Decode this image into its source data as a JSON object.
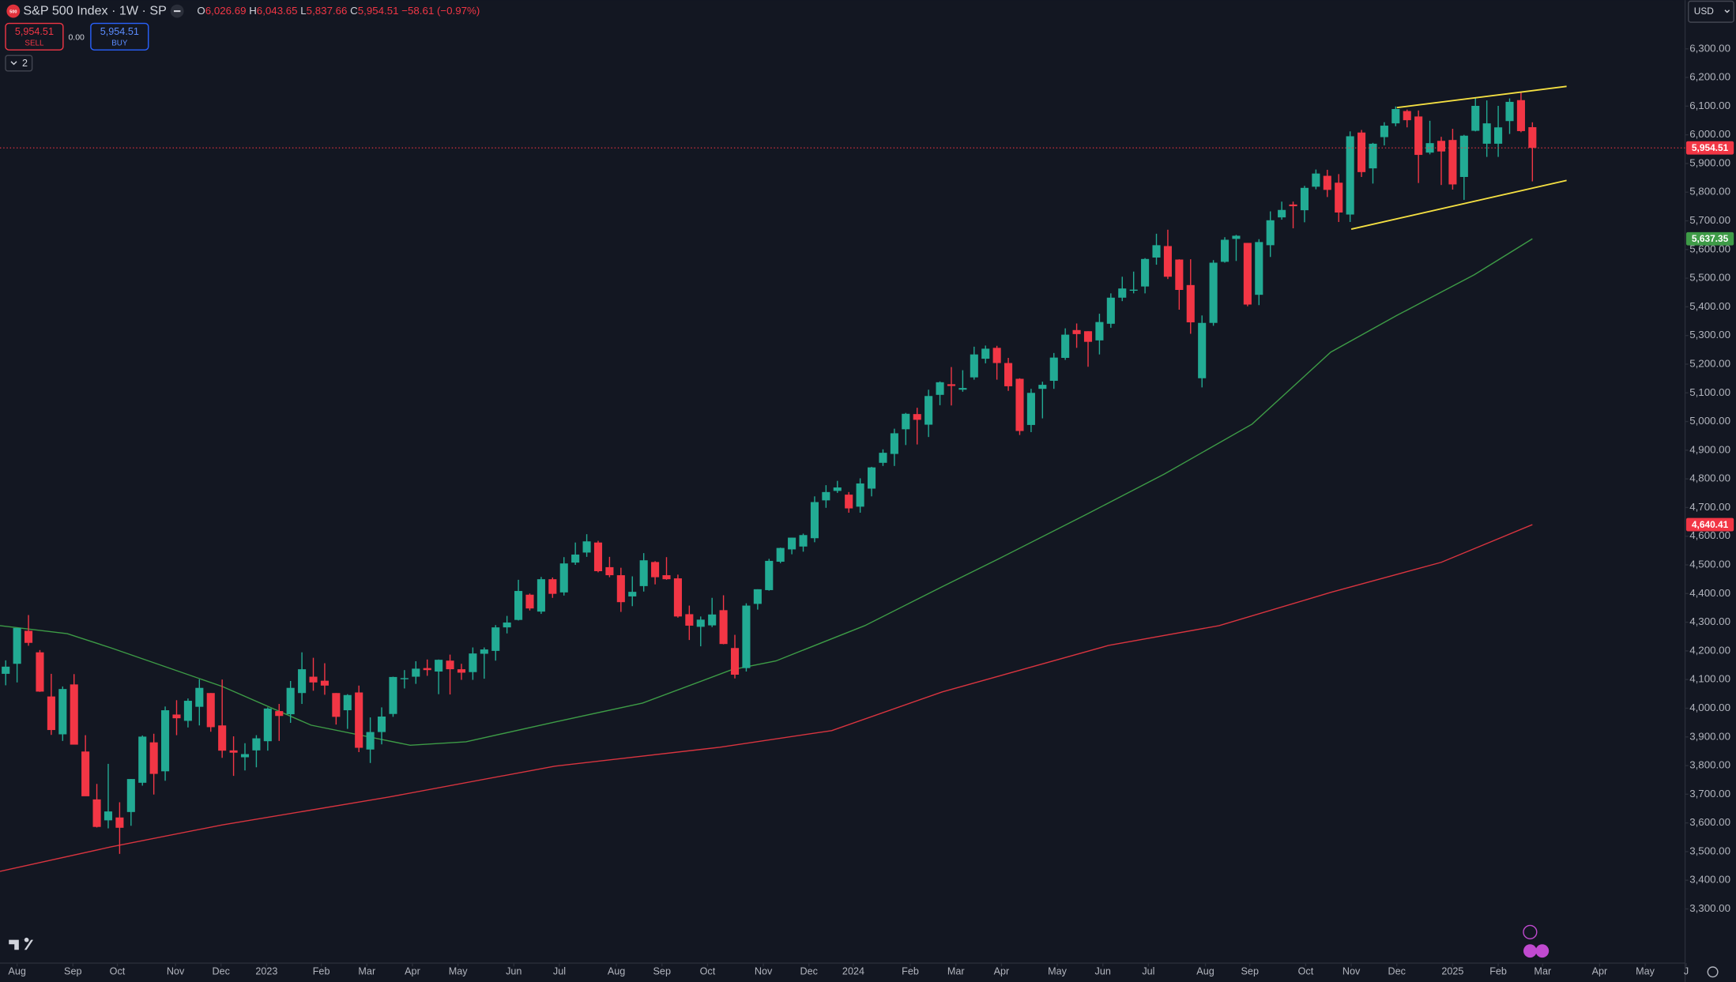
{
  "header": {
    "logo": "500",
    "symbol": "S&P 500 Index · 1W · SP",
    "ohlc": [
      {
        "key": "O",
        "value": "6,026.69"
      },
      {
        "key": "H",
        "value": "6,043.65"
      },
      {
        "key": "L",
        "value": "5,837.66"
      },
      {
        "key": "C",
        "value": "5,954.51"
      }
    ],
    "change": "−58.61 (−0.97%)",
    "sell_price": "5,954.51",
    "sell": "SELL",
    "spread": "0.00",
    "buy_price": "5,954.51",
    "buy": "BUY",
    "indicators": "2",
    "currency": "USD"
  },
  "chart_data": {
    "type": "candlestick",
    "up_color": "#22ab94",
    "down_color": "#f23645",
    "grid": false,
    "xlim": [
      -0.5,
      147.4
    ],
    "ylim": [
      3111,
      6470
    ],
    "xticks": [
      {
        "value": 1.0,
        "label": "Aug"
      },
      {
        "value": 5.9,
        "label": "Sep"
      },
      {
        "value": 9.8,
        "label": "Oct"
      },
      {
        "value": 14.9,
        "label": "Nov"
      },
      {
        "value": 18.9,
        "label": "Dec"
      },
      {
        "value": 22.9,
        "label": "2023"
      },
      {
        "value": 27.7,
        "label": "Feb"
      },
      {
        "value": 31.7,
        "label": "Mar"
      },
      {
        "value": 35.7,
        "label": "Apr"
      },
      {
        "value": 39.7,
        "label": "May"
      },
      {
        "value": 44.6,
        "label": "Jun"
      },
      {
        "value": 48.6,
        "label": "Jul"
      },
      {
        "value": 53.6,
        "label": "Aug"
      },
      {
        "value": 57.6,
        "label": "Sep"
      },
      {
        "value": 61.6,
        "label": "Oct"
      },
      {
        "value": 66.5,
        "label": "Nov"
      },
      {
        "value": 70.5,
        "label": "Dec"
      },
      {
        "value": 74.4,
        "label": "2024"
      },
      {
        "value": 79.4,
        "label": "Feb"
      },
      {
        "value": 83.4,
        "label": "Mar"
      },
      {
        "value": 87.4,
        "label": "Apr"
      },
      {
        "value": 92.3,
        "label": "May"
      },
      {
        "value": 96.3,
        "label": "Jun"
      },
      {
        "value": 100.3,
        "label": "Jul"
      },
      {
        "value": 105.3,
        "label": "Aug"
      },
      {
        "value": 109.2,
        "label": "Sep"
      },
      {
        "value": 114.1,
        "label": "Oct"
      },
      {
        "value": 118.1,
        "label": "Nov"
      },
      {
        "value": 122.1,
        "label": "Dec"
      },
      {
        "value": 127.0,
        "label": "2025"
      },
      {
        "value": 131.0,
        "label": "Feb"
      },
      {
        "value": 134.9,
        "label": "Mar"
      },
      {
        "value": 139.9,
        "label": "Apr"
      },
      {
        "value": 143.9,
        "label": "May"
      },
      {
        "value": 147.5,
        "label": "J"
      }
    ],
    "yticks": [
      {
        "value": 3300,
        "label": "3,300.00"
      },
      {
        "value": 3400,
        "label": "3,400.00"
      },
      {
        "value": 3500,
        "label": "3,500.00"
      },
      {
        "value": 3600,
        "label": "3,600.00"
      },
      {
        "value": 3700,
        "label": "3,700.00"
      },
      {
        "value": 3800,
        "label": "3,800.00"
      },
      {
        "value": 3900,
        "label": "3,900.00"
      },
      {
        "value": 4000,
        "label": "4,000.00"
      },
      {
        "value": 4100,
        "label": "4,100.00"
      },
      {
        "value": 4200,
        "label": "4,200.00"
      },
      {
        "value": 4300,
        "label": "4,300.00"
      },
      {
        "value": 4400,
        "label": "4,400.00"
      },
      {
        "value": 4500,
        "label": "4,500.00"
      },
      {
        "value": 4600,
        "label": "4,600.00"
      },
      {
        "value": 4700,
        "label": "4,700.00"
      },
      {
        "value": 4800,
        "label": "4,800.00"
      },
      {
        "value": 4900,
        "label": "4,900.00"
      },
      {
        "value": 5000,
        "label": "5,000.00"
      },
      {
        "value": 5100,
        "label": "5,100.00"
      },
      {
        "value": 5200,
        "label": "5,200.00"
      },
      {
        "value": 5300,
        "label": "5,300.00"
      },
      {
        "value": 5400,
        "label": "5,400.00"
      },
      {
        "value": 5500,
        "label": "5,500.00"
      },
      {
        "value": 5600,
        "label": "5,600.00"
      },
      {
        "value": 5700,
        "label": "5,700.00"
      },
      {
        "value": 5800,
        "label": "5,800.00"
      },
      {
        "value": 5900,
        "label": "5,900.00"
      },
      {
        "value": 6000,
        "label": "6,000.00"
      },
      {
        "value": 6100,
        "label": "6,100.00"
      },
      {
        "value": 6200,
        "label": "6,200.00"
      },
      {
        "value": 6300,
        "label": "6,300.00"
      }
    ],
    "open": [
      4120,
      4155,
      4270,
      4195,
      4041,
      3909,
      4083,
      3849,
      3682,
      3609,
      3619,
      3638,
      3740,
      3881,
      3780,
      3978,
      3956,
      4005,
      4053,
      3940,
      3853,
      3829,
      3853,
      3885,
      3990,
      3979,
      4053,
      4110,
      4096,
      4053,
      3993,
      4055,
      3856,
      3917,
      3980,
      4102,
      4110,
      4140,
      4128,
      4166,
      4136,
      4126,
      4190,
      4200,
      4282,
      4308,
      4396,
      4337,
      4450,
      4404,
      4508,
      4543,
      4578,
      4492,
      4464,
      4390,
      4426,
      4510,
      4464,
      4453,
      4328,
      4284,
      4289,
      4342,
      4210,
      4140,
      4364,
      4412,
      4511,
      4554,
      4564,
      4593,
      4725,
      4758,
      4745,
      4703,
      4766,
      4856,
      4887,
      4973,
      5026,
      4989,
      5093,
      5130,
      5111,
      5154,
      5219,
      5257,
      5204,
      5149,
      4988,
      5114,
      5142,
      5222,
      5319,
      5315,
      5283,
      5341,
      5432,
      5459,
      5471,
      5572,
      5612,
      5565,
      5476,
      5151,
      5344,
      5557,
      5637,
      5623,
      5442,
      5615,
      5712,
      5757,
      5737,
      5819,
      5857,
      5833,
      5722,
      6008,
      5883,
      5992,
      6040,
      6083,
      6064,
      5938,
      5979,
      5982,
      5853,
      6014,
      5969,
      5969,
      6048,
      6121,
      6026.69
    ],
    "high": [
      4167,
      4280,
      4325,
      4203,
      4120,
      4076,
      4119,
      3906,
      3736,
      3806,
      3672,
      3753,
      3905,
      3911,
      4006,
      4028,
      4034,
      4101,
      4053,
      4100,
      3902,
      3878,
      3906,
      4003,
      4015,
      4095,
      4195,
      4176,
      4157,
      4053,
      4049,
      4079,
      3968,
      4003,
      4110,
      4133,
      4164,
      4170,
      4170,
      4187,
      4155,
      4212,
      4212,
      4290,
      4322,
      4448,
      4400,
      4458,
      4456,
      4527,
      4578,
      4607,
      4584,
      4528,
      4490,
      4460,
      4541,
      4513,
      4527,
      4466,
      4358,
      4320,
      4385,
      4394,
      4256,
      4366,
      4415,
      4521,
      4560,
      4595,
      4609,
      4739,
      4778,
      4793,
      4754,
      4802,
      4842,
      4903,
      4975,
      5030,
      5048,
      5111,
      5140,
      5190,
      5179,
      5261,
      5265,
      5264,
      5222,
      5151,
      5114,
      5139,
      5239,
      5325,
      5342,
      5315,
      5376,
      5447,
      5505,
      5523,
      5570,
      5655,
      5669,
      5566,
      5566,
      5370,
      5563,
      5643,
      5651,
      5623,
      5636,
      5733,
      5767,
      5767,
      5822,
      5879,
      5878,
      5863,
      6012,
      6017,
      5972,
      6044,
      6099,
      6088,
      6085,
      6049,
      5993,
      6021,
      6000,
      6128,
      6120,
      6101,
      6127,
      6147,
      6043.65
    ],
    "low": [
      4080,
      4090,
      4218,
      4057,
      3907,
      3886,
      3886,
      3694,
      3584,
      3581,
      3492,
      3590,
      3730,
      3699,
      3747,
      3906,
      3933,
      3940,
      3918,
      3827,
      3764,
      3783,
      3794,
      3852,
      3886,
      3949,
      4015,
      4061,
      4047,
      3943,
      3928,
      3847,
      3809,
      3874,
      3970,
      4069,
      4085,
      4113,
      4049,
      4048,
      4099,
      4099,
      4103,
      4166,
      4261,
      4306,
      4341,
      4329,
      4385,
      4393,
      4500,
      4528,
      4474,
      4457,
      4336,
      4356,
      4407,
      4432,
      4448,
      4316,
      4238,
      4216,
      4283,
      4223,
      4104,
      4128,
      4344,
      4410,
      4506,
      4537,
      4546,
      4579,
      4699,
      4751,
      4682,
      4682,
      4739,
      4845,
      4845,
      4918,
      4920,
      4946,
      5057,
      5056,
      5104,
      5146,
      5203,
      5146,
      5107,
      4953,
      4963,
      5011,
      5114,
      5215,
      5257,
      5191,
      5234,
      5327,
      5420,
      5447,
      5447,
      5547,
      5497,
      5390,
      5306,
      5119,
      5334,
      5554,
      5560,
      5402,
      5406,
      5574,
      5704,
      5674,
      5695,
      5810,
      5783,
      5696,
      5696,
      5853,
      5830,
      5963,
      6030,
      6026,
      5832,
      5932,
      5825,
      5809,
      5773,
      6012,
      5923,
      5923,
      6003,
      6009,
      5837.66
    ],
    "close": [
      4145,
      4280,
      4228,
      4058,
      3924,
      4067,
      3873,
      3693,
      3586,
      3640,
      3583,
      3753,
      3901,
      3771,
      3993,
      3965,
      4026,
      4071,
      3934,
      3852,
      3845,
      3840,
      3895,
      3999,
      3973,
      4071,
      4136,
      4090,
      4079,
      3970,
      4046,
      3862,
      3917,
      3971,
      4109,
      4105,
      4138,
      4133,
      4169,
      4136,
      4124,
      4191,
      4205,
      4282,
      4299,
      4409,
      4348,
      4450,
      4399,
      4505,
      4536,
      4582,
      4478,
      4464,
      4370,
      4406,
      4516,
      4457,
      4450,
      4320,
      4288,
      4309,
      4327,
      4224,
      4117,
      4358,
      4415,
      4514,
      4559,
      4595,
      4604,
      4719,
      4754,
      4770,
      4697,
      4784,
      4840,
      4891,
      4959,
      5027,
      5006,
      5089,
      5137,
      5124,
      5117,
      5234,
      5254,
      5204,
      5123,
      4967,
      5100,
      5128,
      5223,
      5303,
      5305,
      5278,
      5347,
      5432,
      5464,
      5460,
      5567,
      5615,
      5505,
      5459,
      5346,
      5344,
      5554,
      5634,
      5648,
      5408,
      5626,
      5702,
      5738,
      5751,
      5815,
      5865,
      5808,
      5729,
      5995,
      5870,
      5969,
      6032,
      6090,
      6051,
      5930,
      5971,
      5942,
      5827,
      5997,
      6101,
      6040,
      6026,
      6115,
      6013,
      5954.51
    ],
    "lines": [
      {
        "color": "#3d9b46",
        "x": [
          -0.5,
          5.4,
          9.2,
          19.0,
          26.8,
          35.5,
          40.4,
          48.2,
          55.9,
          63.7,
          67.6,
          75.4,
          82.2,
          87.1,
          94.8,
          101.7,
          109.4,
          116.3,
          122.1,
          128.9,
          134.0
        ],
        "values": [
          4288,
          4260,
          4211,
          4076,
          3941,
          3871,
          3883,
          3952,
          4018,
          4134,
          4165,
          4288,
          4424,
          4520,
          4675,
          4817,
          4991,
          5242,
          5370,
          5512,
          5637.35
        ]
      },
      {
        "color": "#d8343f",
        "x": [
          -0.5,
          9.2,
          19.0,
          33.6,
          48.2,
          62.7,
          72.5,
          82.2,
          96.8,
          106.5,
          116.3,
          126.0,
          134.0
        ],
        "values": [
          3431,
          3516,
          3593,
          3690,
          3798,
          3864,
          3922,
          4057,
          4219,
          4288,
          4404,
          4509,
          4640.41
        ]
      }
    ],
    "trendlines": [
      {
        "color": "#f5e042",
        "x": [
          122.1,
          137.0
        ],
        "values": [
          6095,
          6169
        ]
      },
      {
        "color": "#f5e042",
        "x": [
          118.1,
          137.0
        ],
        "values": [
          5671,
          5841
        ]
      }
    ],
    "price_labels": [
      {
        "value": 5954.51,
        "label": "5,954.51",
        "color": "#f23645"
      },
      {
        "value": 5637.35,
        "label": "5,637.35",
        "color": "#3e9b47"
      },
      {
        "value": 4640.41,
        "label": "4,640.41",
        "color": "#f23645"
      }
    ]
  }
}
